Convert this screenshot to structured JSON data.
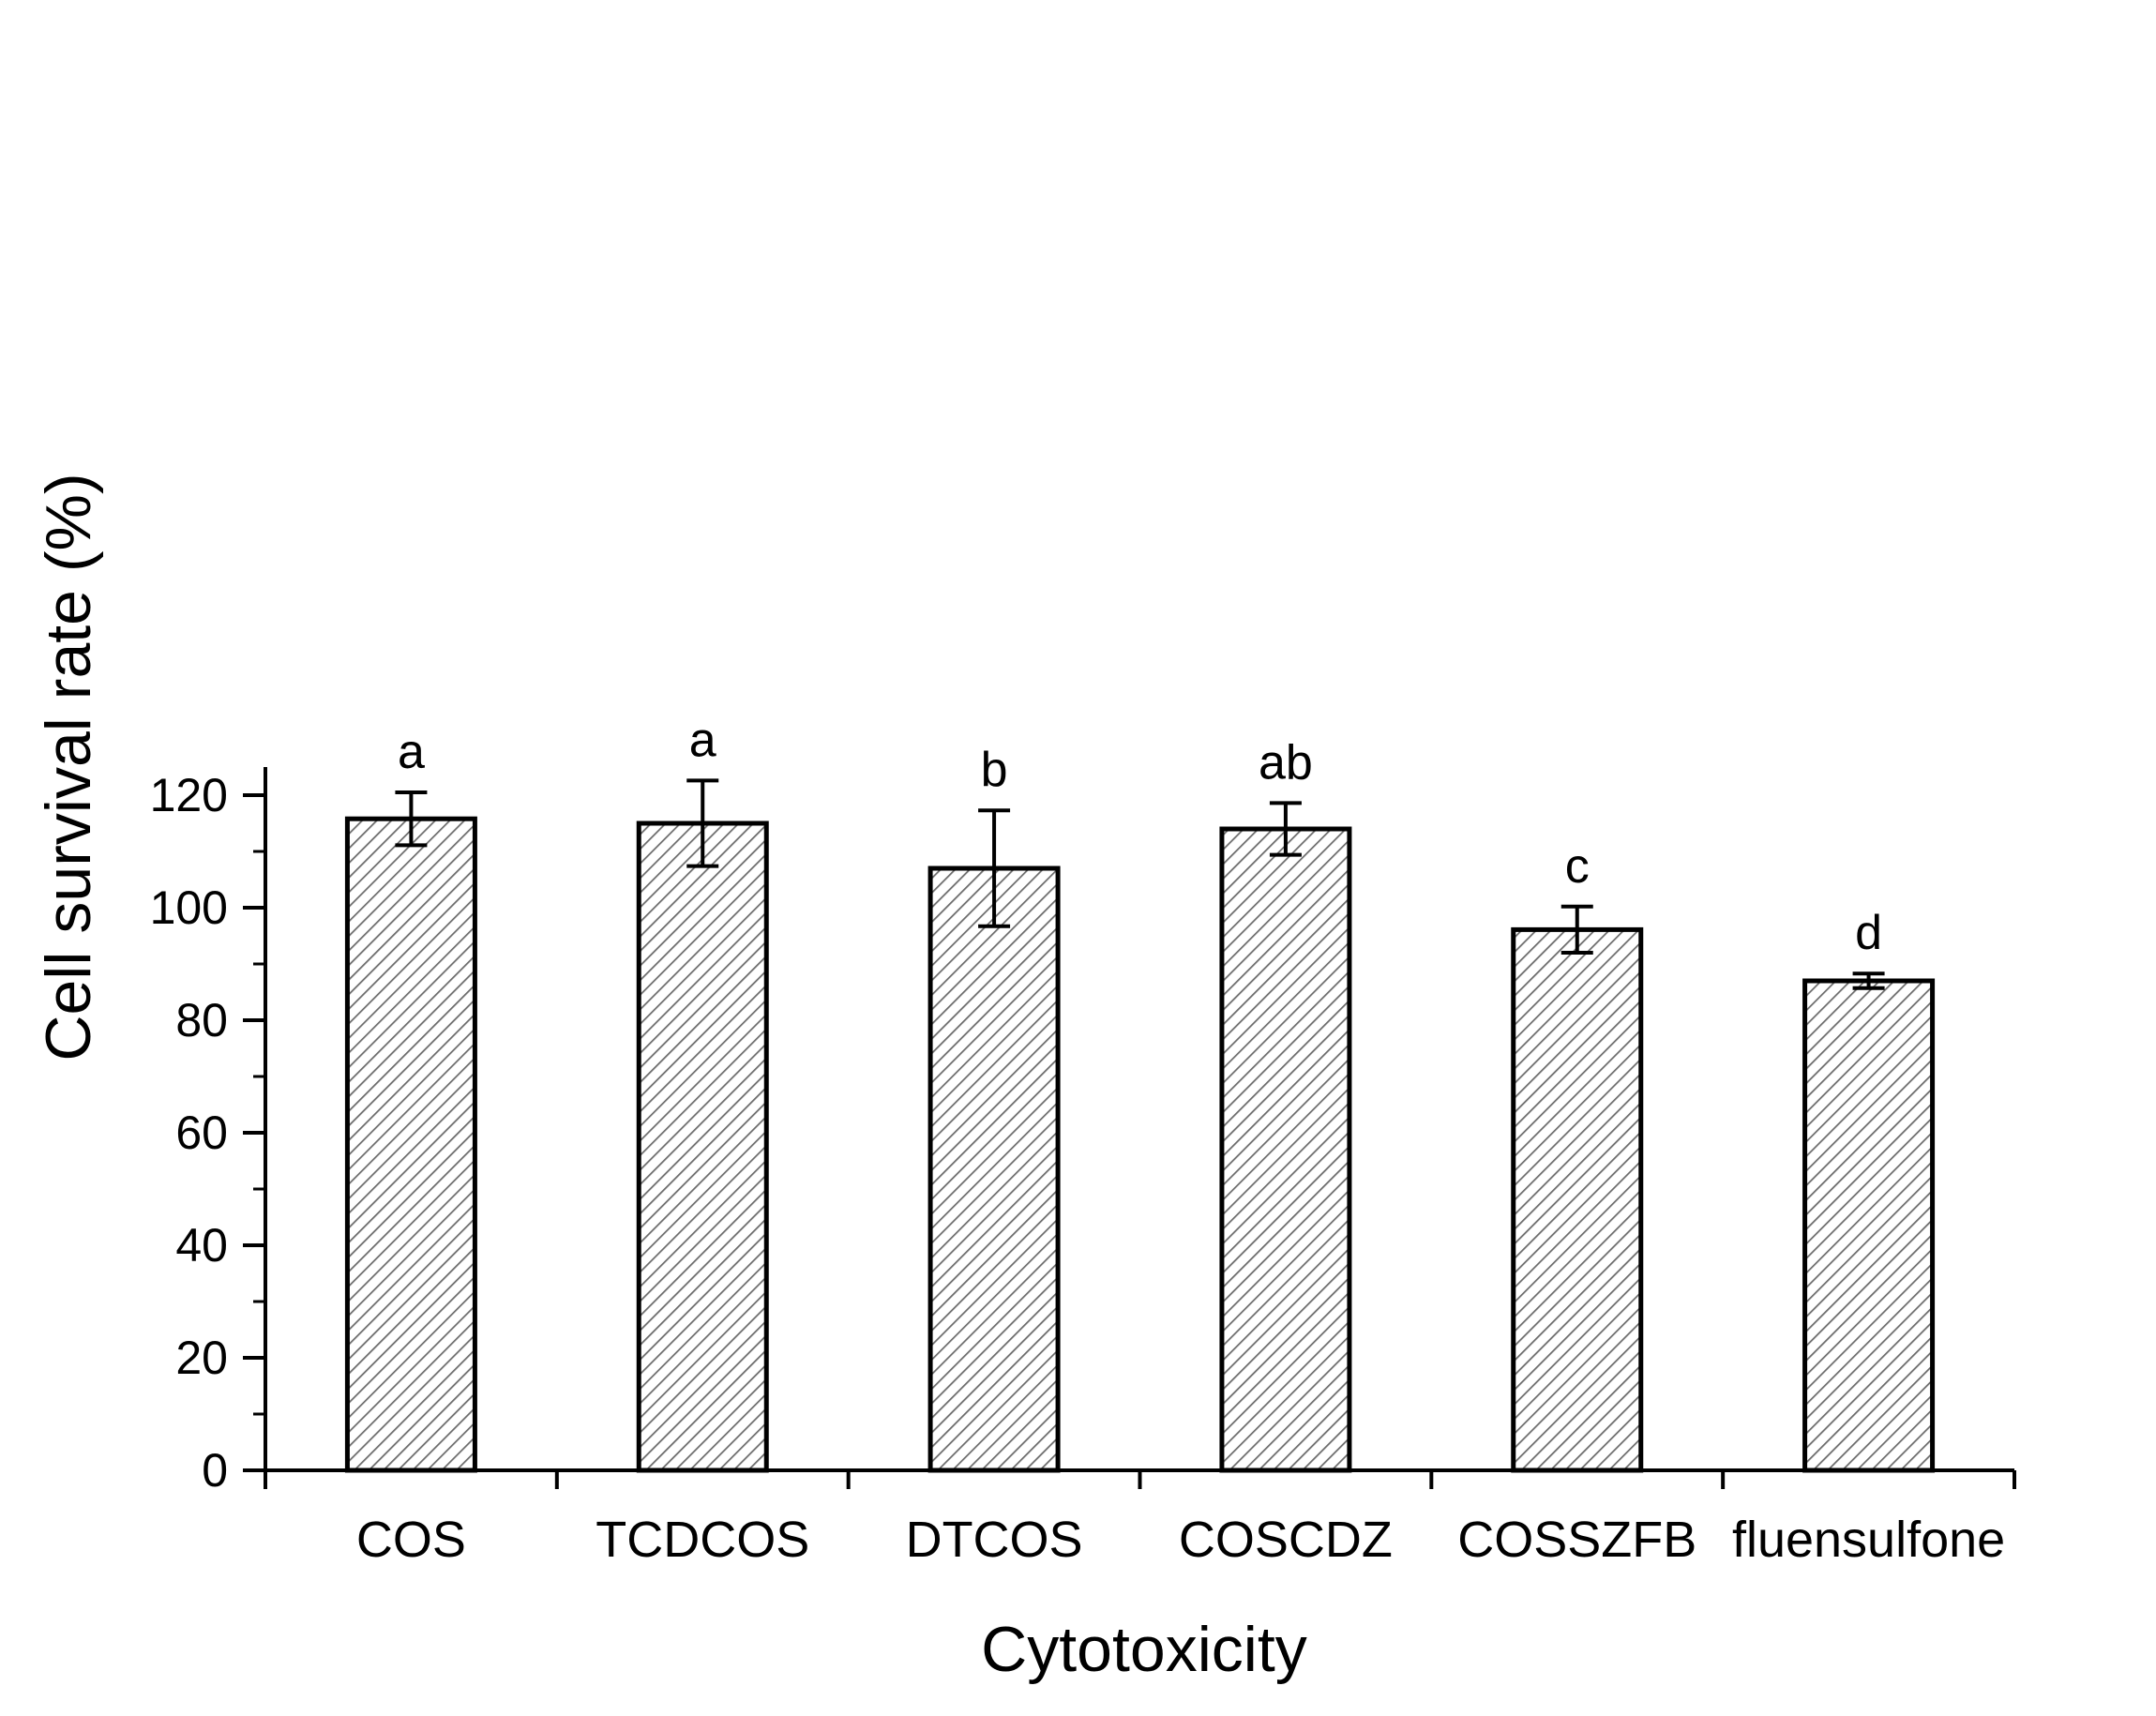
{
  "chart_data": {
    "type": "bar",
    "title": "",
    "xlabel": "Cytotoxicity",
    "ylabel": "Cell survival rate (%)",
    "ylim": [
      0,
      125
    ],
    "yticks": [
      0,
      20,
      40,
      60,
      80,
      100,
      120
    ],
    "grid": false,
    "bar_fill": "diagonal-hatch",
    "categories": [
      "COS",
      "TCDCOS",
      "DTCOS",
      "COSCDZ",
      "COSSZFB",
      "fluensulfone"
    ],
    "values": [
      115.8,
      115.0,
      107.0,
      114.0,
      96.1,
      87.0
    ],
    "errors": [
      4.7,
      7.6,
      10.3,
      4.6,
      4.1,
      1.3
    ],
    "significance_letters": [
      "a",
      "a",
      "b",
      "ab",
      "c",
      "d"
    ]
  },
  "colors": {
    "axis": "#000000",
    "bar_fill": "#ffffff",
    "hatch": "#6b6b6b",
    "background": "#ffffff"
  }
}
